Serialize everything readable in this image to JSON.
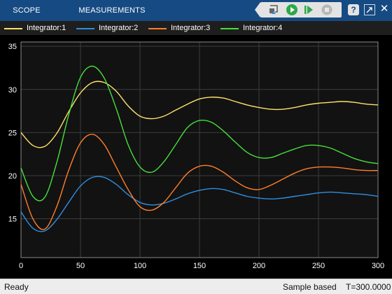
{
  "toolstrip": {
    "tabs": [
      {
        "label": "SCOPE"
      },
      {
        "label": "MEASUREMENTS"
      }
    ],
    "buttons": [
      "highlight-block-icon",
      "run-icon",
      "step-forward-icon",
      "stop-icon",
      "help-icon",
      "undock-icon",
      "close-icon"
    ],
    "help_label": "?",
    "close_label": "✕"
  },
  "legend": {
    "items": [
      {
        "label": "Integrator:1",
        "color": "#ffe26a"
      },
      {
        "label": "Integrator:2",
        "color": "#2f8fe0"
      },
      {
        "label": "Integrator:3",
        "color": "#ff7f2a"
      },
      {
        "label": "Integrator:4",
        "color": "#46e13a"
      }
    ]
  },
  "chart_data": {
    "type": "line",
    "title": "",
    "xlabel": "",
    "ylabel": "",
    "xlim": [
      0,
      300
    ],
    "ylim": [
      10.5,
      35.5
    ],
    "xticks": [
      0,
      50,
      100,
      150,
      200,
      250,
      300
    ],
    "yticks": [
      15,
      20,
      25,
      30,
      35
    ],
    "grid": true,
    "background": "#121212",
    "series": [
      {
        "name": "Integrator:1",
        "color": "#ffe26a",
        "x": [
          0,
          10,
          20,
          30,
          40,
          50,
          60,
          70,
          80,
          90,
          100,
          110,
          120,
          130,
          140,
          150,
          160,
          170,
          180,
          190,
          200,
          210,
          220,
          230,
          240,
          250,
          260,
          270,
          280,
          290,
          300
        ],
        "y": [
          25.0,
          23.5,
          23.4,
          24.9,
          27.4,
          29.6,
          30.8,
          30.8,
          29.8,
          28.1,
          26.9,
          26.6,
          26.9,
          27.6,
          28.3,
          28.9,
          29.1,
          29.0,
          28.6,
          28.2,
          27.9,
          27.7,
          27.7,
          27.9,
          28.2,
          28.4,
          28.5,
          28.6,
          28.5,
          28.3,
          28.2
        ]
      },
      {
        "name": "Integrator:2",
        "color": "#2f8fe0",
        "x": [
          0,
          10,
          20,
          30,
          40,
          50,
          60,
          70,
          80,
          90,
          100,
          110,
          120,
          130,
          140,
          150,
          160,
          170,
          180,
          190,
          200,
          210,
          220,
          230,
          240,
          250,
          260,
          270,
          280,
          290,
          300
        ],
        "y": [
          15.8,
          13.9,
          13.6,
          14.9,
          16.9,
          18.8,
          19.8,
          19.8,
          19.0,
          17.8,
          16.9,
          16.6,
          16.8,
          17.3,
          17.9,
          18.3,
          18.5,
          18.4,
          18.0,
          17.6,
          17.4,
          17.3,
          17.4,
          17.6,
          17.8,
          18.0,
          18.1,
          18.0,
          17.9,
          17.8,
          17.6
        ]
      },
      {
        "name": "Integrator:3",
        "color": "#ff7f2a",
        "x": [
          0,
          10,
          20,
          30,
          40,
          50,
          60,
          70,
          80,
          90,
          100,
          110,
          120,
          130,
          140,
          150,
          160,
          170,
          180,
          190,
          200,
          210,
          220,
          230,
          240,
          250,
          260,
          270,
          280,
          290,
          300
        ],
        "y": [
          19.0,
          15.0,
          13.8,
          16.4,
          20.6,
          23.8,
          24.8,
          23.6,
          21.0,
          18.4,
          16.4,
          16.0,
          16.9,
          18.6,
          20.3,
          21.1,
          21.1,
          20.4,
          19.4,
          18.6,
          18.4,
          18.9,
          19.6,
          20.3,
          20.8,
          21.0,
          21.0,
          20.9,
          20.7,
          20.6,
          20.6
        ]
      },
      {
        "name": "Integrator:4",
        "color": "#46e13a",
        "x": [
          0,
          10,
          20,
          30,
          40,
          50,
          60,
          70,
          80,
          90,
          100,
          110,
          120,
          130,
          140,
          150,
          160,
          170,
          180,
          190,
          200,
          210,
          220,
          230,
          240,
          250,
          260,
          270,
          280,
          290,
          300
        ],
        "y": [
          20.9,
          17.6,
          17.5,
          21.5,
          27.0,
          31.4,
          32.7,
          31.3,
          27.8,
          23.6,
          21.0,
          20.4,
          21.6,
          23.6,
          25.6,
          26.4,
          26.2,
          25.2,
          23.9,
          22.7,
          22.1,
          22.1,
          22.6,
          23.1,
          23.5,
          23.5,
          23.2,
          22.6,
          22.0,
          21.6,
          21.4
        ]
      }
    ]
  },
  "status": {
    "left": "Ready",
    "mode": "Sample based",
    "time": "T=300.0000"
  }
}
